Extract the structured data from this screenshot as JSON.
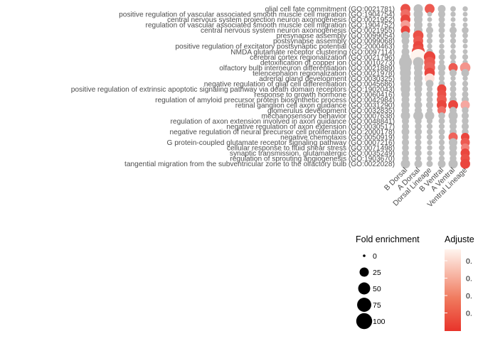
{
  "chart_data": {
    "type": "scatter",
    "subtype": "dot-plot",
    "x_categories": [
      "B Dorsal",
      "A Dorsal",
      "Dorsal Lineage",
      "B Ventral",
      "A Ventral",
      "Ventral Lineage"
    ],
    "y_categories": [
      "glial cell fate commitment (GO:0021781)",
      "positive regulation of vascular associated smooth muscle cell migration (GO:1904754)",
      "central nervous system projection neuron axonogenesis (GO:0021952)",
      "regulation of vascular associated smooth muscle cell migration (GO:1904752)",
      "central nervous system neuron axonogenesis (GO:0021955)",
      "presynapse assembly (GO:0099054)",
      "postsynapse assembly (GO:0099068)",
      "positive regulation of excitatory postsynaptic potential (GO:2000463)",
      "NMDA glutamate receptor clustering (GO:0097114)",
      "cerebral cortex regionalization (GO:0021796)",
      "detoxification of copper ion (GO:0010273)",
      "olfactory bulb interneuron differentiation (GO:0021889)",
      "telencephalon regionalization (GO:0021978)",
      "adrenal gland development (GO:0030325)",
      "negative regulation of glial cell differentiation (GO:0045686)",
      "positive regulation of extrinsic apoptotic signaling pathway via death domain receptors (GO:1902043)",
      "response to growth hormone (GO:0060416)",
      "regulation of amyloid precursor protein biosynthetic process (GO:0042984)",
      "retinal ganglion cell axon guidance (GO:0031290)",
      "glomerulus development (GO:0032835)",
      "mechanosensory behavior (GO:0007638)",
      "regulation of axon extension involved in axon guidance (GO:0048841)",
      "negative regulation of axon extension (GO:0030517)",
      "negative regulation of neural precursor cell proliferation (GO:2000178)",
      "negative chemotaxis (GO:0050919)",
      "G protein-coupled glutamate receptor signaling pathway (GO:0007216)",
      "cellular response to fluid shear stress (GO:0071498)",
      "synaptic transmission, glutamatergic (GO:0035249)",
      "regulation of sprouting angiogenesis (GO:1903670)",
      "tangential migration from the subventricular zone to the olfactory bulb (GO:0022028)"
    ],
    "color_scale": {
      "title": "Adjuste",
      "tick_labels": [
        "0.",
        "0.",
        "0.",
        "0."
      ],
      "low_color": "#e8332a",
      "high_color": "#fff4ee",
      "non_significant_color": "#bebebe"
    },
    "size_scale": {
      "title": "Fold enrichment",
      "values": [
        0,
        25,
        50,
        75,
        100
      ]
    },
    "points": [
      {
        "term": 0,
        "x": 0,
        "fold": 30,
        "sig": 0.15
      },
      {
        "term": 0,
        "x": 1,
        "fold": 25,
        "sig": null
      },
      {
        "term": 0,
        "x": 2,
        "fold": 30,
        "sig": 0.2
      },
      {
        "term": 0,
        "x": 3,
        "fold": 15,
        "sig": null
      },
      {
        "term": 0,
        "x": 4,
        "fold": 5,
        "sig": null
      },
      {
        "term": 0,
        "x": 5,
        "fold": 4,
        "sig": null
      },
      {
        "term": 1,
        "x": 0,
        "fold": 30,
        "sig": 0.3
      },
      {
        "term": 1,
        "x": 1,
        "fold": 25,
        "sig": null
      },
      {
        "term": 1,
        "x": 2,
        "fold": 3,
        "sig": null
      },
      {
        "term": 1,
        "x": 3,
        "fold": 12,
        "sig": null
      },
      {
        "term": 1,
        "x": 4,
        "fold": 4,
        "sig": null
      },
      {
        "term": 1,
        "x": 5,
        "fold": 3,
        "sig": null
      },
      {
        "term": 2,
        "x": 0,
        "fold": 30,
        "sig": 0.1
      },
      {
        "term": 2,
        "x": 1,
        "fold": 20,
        "sig": null
      },
      {
        "term": 2,
        "x": 2,
        "fold": 3,
        "sig": null
      },
      {
        "term": 2,
        "x": 3,
        "fold": 8,
        "sig": null
      },
      {
        "term": 2,
        "x": 4,
        "fold": 3,
        "sig": null
      },
      {
        "term": 2,
        "x": 5,
        "fold": 3,
        "sig": null
      },
      {
        "term": 3,
        "x": 0,
        "fold": 28,
        "sig": 0.55
      },
      {
        "term": 3,
        "x": 1,
        "fold": 20,
        "sig": null
      },
      {
        "term": 3,
        "x": 2,
        "fold": 3,
        "sig": null
      },
      {
        "term": 3,
        "x": 3,
        "fold": 10,
        "sig": null
      },
      {
        "term": 3,
        "x": 4,
        "fold": 3,
        "sig": null
      },
      {
        "term": 3,
        "x": 5,
        "fold": 3,
        "sig": null
      },
      {
        "term": 4,
        "x": 0,
        "fold": 25,
        "sig": 0.1
      },
      {
        "term": 4,
        "x": 1,
        "fold": 20,
        "sig": null
      },
      {
        "term": 4,
        "x": 2,
        "fold": 12,
        "sig": null
      },
      {
        "term": 4,
        "x": 3,
        "fold": 8,
        "sig": null
      },
      {
        "term": 4,
        "x": 4,
        "fold": 12,
        "sig": null
      },
      {
        "term": 4,
        "x": 5,
        "fold": 10,
        "sig": null
      },
      {
        "term": 5,
        "x": 0,
        "fold": 20,
        "sig": null
      },
      {
        "term": 5,
        "x": 1,
        "fold": 35,
        "sig": 0.15
      },
      {
        "term": 5,
        "x": 2,
        "fold": 6,
        "sig": null
      },
      {
        "term": 5,
        "x": 3,
        "fold": 6,
        "sig": null
      },
      {
        "term": 5,
        "x": 4,
        "fold": 6,
        "sig": null
      },
      {
        "term": 5,
        "x": 5,
        "fold": 5,
        "sig": null
      },
      {
        "term": 6,
        "x": 0,
        "fold": 15,
        "sig": null
      },
      {
        "term": 6,
        "x": 1,
        "fold": 30,
        "sig": 0.2
      },
      {
        "term": 6,
        "x": 2,
        "fold": 6,
        "sig": null
      },
      {
        "term": 6,
        "x": 3,
        "fold": 4,
        "sig": null
      },
      {
        "term": 6,
        "x": 4,
        "fold": 6,
        "sig": null
      },
      {
        "term": 6,
        "x": 5,
        "fold": 4,
        "sig": null
      },
      {
        "term": 7,
        "x": 0,
        "fold": 8,
        "sig": null
      },
      {
        "term": 7,
        "x": 1,
        "fold": 35,
        "sig": 0.1
      },
      {
        "term": 7,
        "x": 2,
        "fold": 4,
        "sig": null
      },
      {
        "term": 7,
        "x": 3,
        "fold": 4,
        "sig": null
      },
      {
        "term": 7,
        "x": 4,
        "fold": 4,
        "sig": null
      },
      {
        "term": 7,
        "x": 5,
        "fold": 3,
        "sig": null
      },
      {
        "term": 8,
        "x": 0,
        "fold": 15,
        "sig": null
      },
      {
        "term": 8,
        "x": 1,
        "fold": 60,
        "sig": 0.15
      },
      {
        "term": 8,
        "x": 2,
        "fold": 8,
        "sig": null
      },
      {
        "term": 8,
        "x": 3,
        "fold": 6,
        "sig": null
      },
      {
        "term": 8,
        "x": 4,
        "fold": 4,
        "sig": null
      },
      {
        "term": 8,
        "x": 5,
        "fold": 3,
        "sig": null
      },
      {
        "term": 9,
        "x": 0,
        "fold": 20,
        "sig": null
      },
      {
        "term": 9,
        "x": 1,
        "fold": 100,
        "sig": 1.0
      },
      {
        "term": 9,
        "x": 2,
        "fold": 45,
        "sig": 0.1
      },
      {
        "term": 9,
        "x": 3,
        "fold": 8,
        "sig": null
      },
      {
        "term": 9,
        "x": 4,
        "fold": 8,
        "sig": null
      },
      {
        "term": 9,
        "x": 5,
        "fold": 6,
        "sig": null
      },
      {
        "term": 10,
        "x": 0,
        "fold": 60,
        "sig": null
      },
      {
        "term": 10,
        "x": 1,
        "fold": 35,
        "sig": null
      },
      {
        "term": 10,
        "x": 2,
        "fold": 40,
        "sig": 0.2
      },
      {
        "term": 10,
        "x": 3,
        "fold": 5,
        "sig": null
      },
      {
        "term": 10,
        "x": 4,
        "fold": 4,
        "sig": null
      },
      {
        "term": 10,
        "x": 5,
        "fold": 4,
        "sig": null
      },
      {
        "term": 11,
        "x": 0,
        "fold": 40,
        "sig": null
      },
      {
        "term": 11,
        "x": 1,
        "fold": 20,
        "sig": null
      },
      {
        "term": 11,
        "x": 2,
        "fold": 40,
        "sig": 0.25
      },
      {
        "term": 11,
        "x": 3,
        "fold": 15,
        "sig": null
      },
      {
        "term": 11,
        "x": 4,
        "fold": 25,
        "sig": 0.2
      },
      {
        "term": 11,
        "x": 5,
        "fold": 35,
        "sig": 0.5
      },
      {
        "term": 12,
        "x": 0,
        "fold": 40,
        "sig": null
      },
      {
        "term": 12,
        "x": 1,
        "fold": 20,
        "sig": null
      },
      {
        "term": 12,
        "x": 2,
        "fold": 35,
        "sig": 0.1
      },
      {
        "term": 12,
        "x": 3,
        "fold": 10,
        "sig": null
      },
      {
        "term": 12,
        "x": 4,
        "fold": 12,
        "sig": null
      },
      {
        "term": 12,
        "x": 5,
        "fold": 15,
        "sig": null
      },
      {
        "term": 13,
        "x": 0,
        "fold": 35,
        "sig": null
      },
      {
        "term": 13,
        "x": 1,
        "fold": 20,
        "sig": null
      },
      {
        "term": 13,
        "x": 2,
        "fold": 30,
        "sig": 0.9
      },
      {
        "term": 13,
        "x": 3,
        "fold": 6,
        "sig": null
      },
      {
        "term": 13,
        "x": 4,
        "fold": 4,
        "sig": null
      },
      {
        "term": 13,
        "x": 5,
        "fold": 4,
        "sig": null
      },
      {
        "term": 14,
        "x": 0,
        "fold": 30,
        "sig": null
      },
      {
        "term": 14,
        "x": 1,
        "fold": 20,
        "sig": null
      },
      {
        "term": 14,
        "x": 2,
        "fold": 15,
        "sig": null
      },
      {
        "term": 14,
        "x": 3,
        "fold": 8,
        "sig": null
      },
      {
        "term": 14,
        "x": 4,
        "fold": 8,
        "sig": null
      },
      {
        "term": 14,
        "x": 5,
        "fold": 6,
        "sig": null
      },
      {
        "term": 15,
        "x": 0,
        "fold": 28,
        "sig": null
      },
      {
        "term": 15,
        "x": 1,
        "fold": 15,
        "sig": null
      },
      {
        "term": 15,
        "x": 2,
        "fold": 6,
        "sig": null
      },
      {
        "term": 15,
        "x": 3,
        "fold": 25,
        "sig": 0.1
      },
      {
        "term": 15,
        "x": 4,
        "fold": 8,
        "sig": null
      },
      {
        "term": 15,
        "x": 5,
        "fold": 6,
        "sig": null
      },
      {
        "term": 16,
        "x": 0,
        "fold": 20,
        "sig": null
      },
      {
        "term": 16,
        "x": 1,
        "fold": 12,
        "sig": null
      },
      {
        "term": 16,
        "x": 2,
        "fold": 10,
        "sig": null
      },
      {
        "term": 16,
        "x": 3,
        "fold": 25,
        "sig": 0.15
      },
      {
        "term": 16,
        "x": 4,
        "fold": 8,
        "sig": null
      },
      {
        "term": 16,
        "x": 5,
        "fold": 8,
        "sig": null
      },
      {
        "term": 17,
        "x": 0,
        "fold": 15,
        "sig": null
      },
      {
        "term": 17,
        "x": 1,
        "fold": 8,
        "sig": null
      },
      {
        "term": 17,
        "x": 2,
        "fold": 8,
        "sig": null
      },
      {
        "term": 17,
        "x": 3,
        "fold": 30,
        "sig": 0.2
      },
      {
        "term": 17,
        "x": 4,
        "fold": 12,
        "sig": null
      },
      {
        "term": 17,
        "x": 5,
        "fold": 12,
        "sig": null
      },
      {
        "term": 18,
        "x": 0,
        "fold": 20,
        "sig": null
      },
      {
        "term": 18,
        "x": 1,
        "fold": 15,
        "sig": null
      },
      {
        "term": 18,
        "x": 2,
        "fold": 12,
        "sig": null
      },
      {
        "term": 18,
        "x": 3,
        "fold": 30,
        "sig": 0.1
      },
      {
        "term": 18,
        "x": 4,
        "fold": 30,
        "sig": 0.1
      },
      {
        "term": 18,
        "x": 5,
        "fold": 25,
        "sig": 0.6
      },
      {
        "term": 19,
        "x": 0,
        "fold": 15,
        "sig": null
      },
      {
        "term": 19,
        "x": 1,
        "fold": 12,
        "sig": null
      },
      {
        "term": 19,
        "x": 2,
        "fold": 6,
        "sig": null
      },
      {
        "term": 19,
        "x": 3,
        "fold": 20,
        "sig": 0.3
      },
      {
        "term": 19,
        "x": 4,
        "fold": 12,
        "sig": null
      },
      {
        "term": 19,
        "x": 5,
        "fold": 10,
        "sig": null
      },
      {
        "term": 20,
        "x": 0,
        "fold": 25,
        "sig": null
      },
      {
        "term": 20,
        "x": 1,
        "fold": 30,
        "sig": null
      },
      {
        "term": 20,
        "x": 2,
        "fold": 25,
        "sig": null
      },
      {
        "term": 20,
        "x": 3,
        "fold": 10,
        "sig": null
      },
      {
        "term": 20,
        "x": 4,
        "fold": 25,
        "sig": null
      },
      {
        "term": 20,
        "x": 5,
        "fold": 12,
        "sig": null
      },
      {
        "term": 21,
        "x": 0,
        "fold": 12,
        "sig": null
      },
      {
        "term": 21,
        "x": 1,
        "fold": 10,
        "sig": null
      },
      {
        "term": 21,
        "x": 2,
        "fold": 6,
        "sig": null
      },
      {
        "term": 21,
        "x": 3,
        "fold": 8,
        "sig": null
      },
      {
        "term": 21,
        "x": 4,
        "fold": 15,
        "sig": null
      },
      {
        "term": 21,
        "x": 5,
        "fold": 10,
        "sig": null
      },
      {
        "term": 22,
        "x": 0,
        "fold": 12,
        "sig": null
      },
      {
        "term": 22,
        "x": 1,
        "fold": 10,
        "sig": null
      },
      {
        "term": 22,
        "x": 2,
        "fold": 6,
        "sig": null
      },
      {
        "term": 22,
        "x": 3,
        "fold": 6,
        "sig": null
      },
      {
        "term": 22,
        "x": 4,
        "fold": 12,
        "sig": null
      },
      {
        "term": 22,
        "x": 5,
        "fold": 12,
        "sig": null
      },
      {
        "term": 23,
        "x": 0,
        "fold": 15,
        "sig": null
      },
      {
        "term": 23,
        "x": 1,
        "fold": 12,
        "sig": null
      },
      {
        "term": 23,
        "x": 2,
        "fold": 6,
        "sig": null
      },
      {
        "term": 23,
        "x": 3,
        "fold": 8,
        "sig": null
      },
      {
        "term": 23,
        "x": 4,
        "fold": 12,
        "sig": null
      },
      {
        "term": 23,
        "x": 5,
        "fold": 10,
        "sig": null
      },
      {
        "term": 24,
        "x": 0,
        "fold": 10,
        "sig": null
      },
      {
        "term": 24,
        "x": 1,
        "fold": 8,
        "sig": null
      },
      {
        "term": 24,
        "x": 2,
        "fold": 6,
        "sig": null
      },
      {
        "term": 24,
        "x": 3,
        "fold": 6,
        "sig": null
      },
      {
        "term": 24,
        "x": 4,
        "fold": 25,
        "sig": 0.25
      },
      {
        "term": 24,
        "x": 5,
        "fold": 20,
        "sig": 0.1
      },
      {
        "term": 25,
        "x": 0,
        "fold": 12,
        "sig": null
      },
      {
        "term": 25,
        "x": 1,
        "fold": 8,
        "sig": null
      },
      {
        "term": 25,
        "x": 2,
        "fold": 4,
        "sig": null
      },
      {
        "term": 25,
        "x": 3,
        "fold": 6,
        "sig": null
      },
      {
        "term": 25,
        "x": 4,
        "fold": 20,
        "sig": null
      },
      {
        "term": 25,
        "x": 5,
        "fold": 25,
        "sig": 0.2
      },
      {
        "term": 26,
        "x": 0,
        "fold": 10,
        "sig": null
      },
      {
        "term": 26,
        "x": 1,
        "fold": 8,
        "sig": null
      },
      {
        "term": 26,
        "x": 2,
        "fold": 4,
        "sig": null
      },
      {
        "term": 26,
        "x": 3,
        "fold": 6,
        "sig": null
      },
      {
        "term": 26,
        "x": 4,
        "fold": 15,
        "sig": null
      },
      {
        "term": 26,
        "x": 5,
        "fold": 20,
        "sig": 0.4
      },
      {
        "term": 27,
        "x": 0,
        "fold": 12,
        "sig": null
      },
      {
        "term": 27,
        "x": 1,
        "fold": 10,
        "sig": null
      },
      {
        "term": 27,
        "x": 2,
        "fold": 4,
        "sig": null
      },
      {
        "term": 27,
        "x": 3,
        "fold": 6,
        "sig": null
      },
      {
        "term": 27,
        "x": 4,
        "fold": 15,
        "sig": null
      },
      {
        "term": 27,
        "x": 5,
        "fold": 25,
        "sig": 0.1
      },
      {
        "term": 28,
        "x": 0,
        "fold": 10,
        "sig": null
      },
      {
        "term": 28,
        "x": 1,
        "fold": 6,
        "sig": null
      },
      {
        "term": 28,
        "x": 2,
        "fold": 4,
        "sig": null
      },
      {
        "term": 28,
        "x": 3,
        "fold": 6,
        "sig": null
      },
      {
        "term": 28,
        "x": 4,
        "fold": 10,
        "sig": null
      },
      {
        "term": 28,
        "x": 5,
        "fold": 25,
        "sig": 0.15
      },
      {
        "term": 29,
        "x": 0,
        "fold": 25,
        "sig": null
      },
      {
        "term": 29,
        "x": 1,
        "fold": 15,
        "sig": null
      },
      {
        "term": 29,
        "x": 2,
        "fold": 8,
        "sig": null
      },
      {
        "term": 29,
        "x": 3,
        "fold": 15,
        "sig": null
      },
      {
        "term": 29,
        "x": 4,
        "fold": 25,
        "sig": null
      },
      {
        "term": 29,
        "x": 5,
        "fold": 30,
        "sig": 0.1
      }
    ]
  }
}
